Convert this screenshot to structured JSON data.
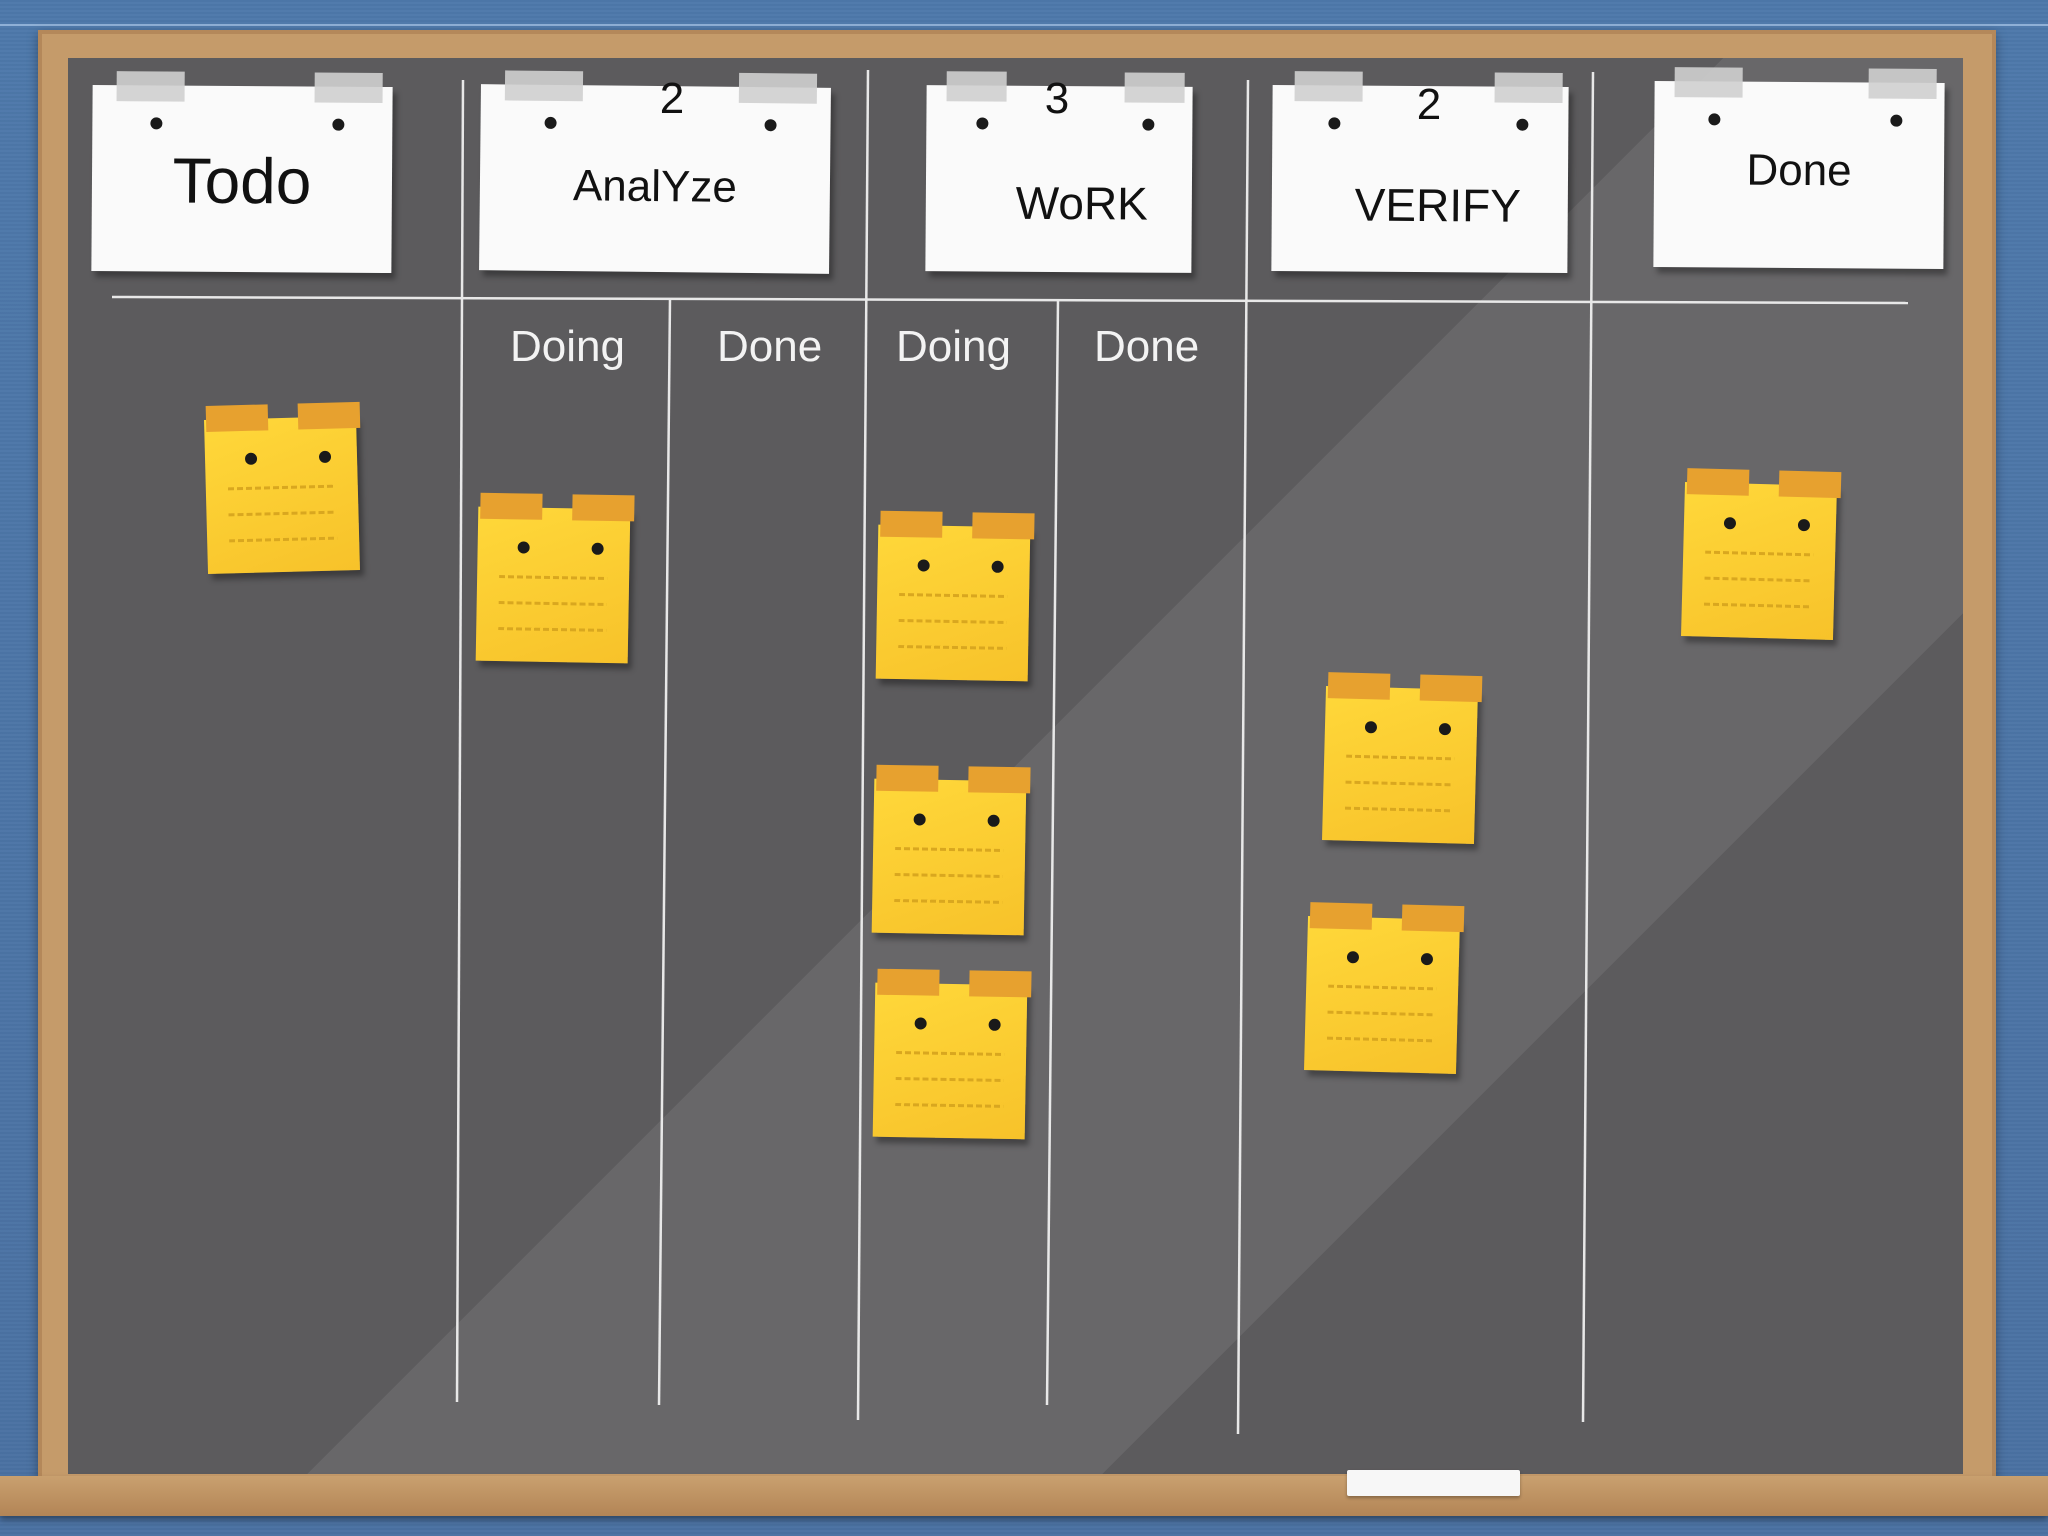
{
  "board": {
    "columns": [
      {
        "name": "Todo",
        "wip": ""
      },
      {
        "name": "AnalYze",
        "wip": "2"
      },
      {
        "name": "WoRK",
        "wip": "3"
      },
      {
        "name": "VERIFY",
        "wip": "2"
      },
      {
        "name": "Done",
        "wip": ""
      }
    ],
    "subcolumns": {
      "analyze_doing": "Doing",
      "analyze_done": "Done",
      "work_doing": "Doing",
      "work_done": "Done"
    },
    "card_counts": {
      "todo": 1,
      "analyze_doing": 1,
      "analyze_done": 0,
      "work_doing": 3,
      "work_done": 0,
      "verify": 2,
      "done": 1
    }
  },
  "colors": {
    "wall": "#4a74a6",
    "frame": "#c59b6a",
    "board": "#5c5b5d",
    "sticky_note": "#f7c22a",
    "tape": "#e7a12f"
  }
}
